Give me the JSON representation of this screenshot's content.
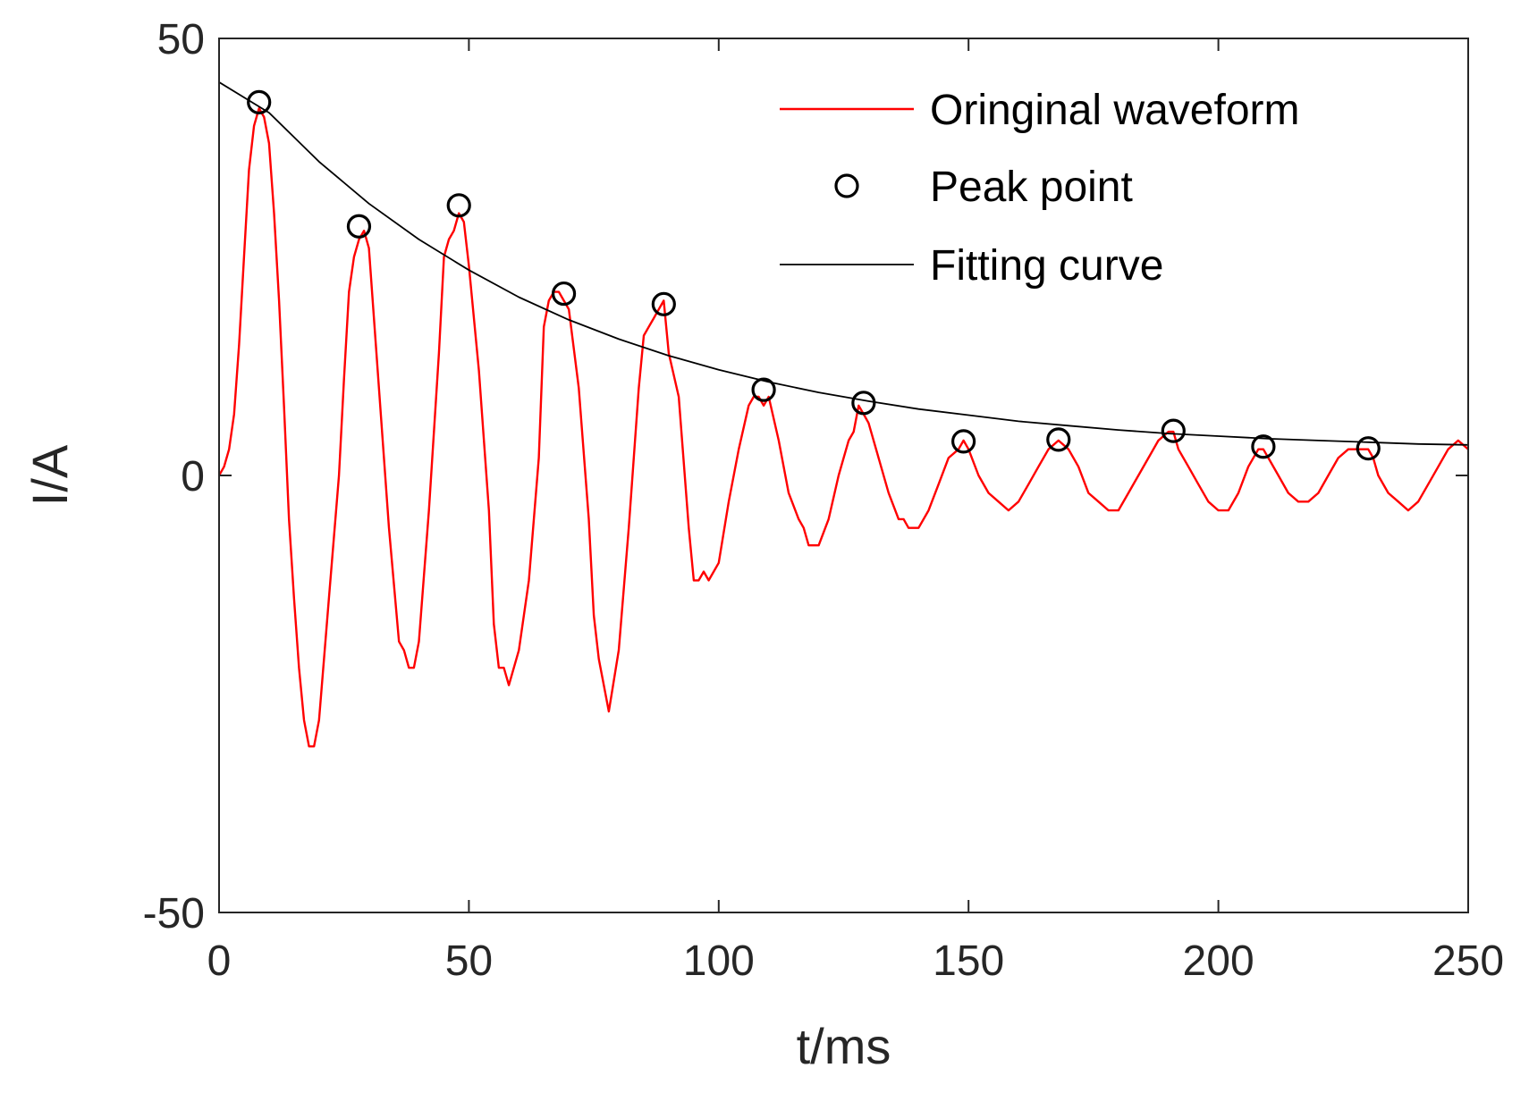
{
  "chart_data": {
    "type": "line",
    "title": "",
    "xlabel": "t/ms",
    "ylabel": "I/A",
    "xlim": [
      0,
      250
    ],
    "ylim": [
      -50,
      50
    ],
    "xticks": [
      0,
      50,
      100,
      150,
      200,
      250
    ],
    "yticks": [
      -50,
      0,
      50
    ],
    "xtick_labels": [
      "0",
      "50",
      "100",
      "150",
      "200",
      "250"
    ],
    "ytick_labels": [
      "-50",
      "0",
      "50"
    ],
    "grid": false,
    "legend_position": "top-right",
    "series": [
      {
        "name": "Oringinal waveform",
        "kind": "line",
        "color": "#ff0000",
        "x": [
          0,
          1,
          2,
          3,
          4,
          5,
          6,
          7,
          8,
          9,
          10,
          11,
          12,
          13,
          14,
          15,
          16,
          17,
          18,
          19,
          20,
          22,
          24,
          25,
          26,
          27,
          28,
          29,
          30,
          32,
          34,
          36,
          37,
          38,
          39,
          40,
          42,
          44,
          45,
          46,
          47,
          48,
          49,
          50,
          52,
          54,
          55,
          56,
          57,
          58,
          60,
          62,
          64,
          65,
          66,
          67,
          68,
          69,
          70,
          72,
          74,
          75,
          76,
          77,
          78,
          80,
          82,
          84,
          85,
          86,
          87,
          88,
          89,
          90,
          92,
          94,
          95,
          96,
          97,
          98,
          100,
          102,
          104,
          106,
          107,
          108,
          109,
          110,
          112,
          114,
          116,
          117,
          118,
          119,
          120,
          122,
          124,
          126,
          127,
          128,
          129,
          130,
          132,
          134,
          136,
          137,
          138,
          139,
          140,
          142,
          144,
          146,
          148,
          149,
          150,
          152,
          154,
          156,
          158,
          160,
          162,
          164,
          166,
          168,
          170,
          172,
          174,
          176,
          178,
          180,
          182,
          184,
          186,
          188,
          190,
          191,
          192,
          194,
          196,
          198,
          200,
          202,
          204,
          206,
          208,
          209,
          210,
          212,
          214,
          216,
          218,
          220,
          222,
          224,
          226,
          228,
          230,
          231,
          232,
          234,
          236,
          238,
          240,
          242,
          244,
          246,
          248,
          250
        ],
        "y": [
          0,
          1,
          3,
          7,
          15,
          25,
          35,
          40,
          42,
          41,
          38,
          30,
          20,
          8,
          -5,
          -14,
          -22,
          -28,
          -31,
          -31,
          -28,
          -14,
          0,
          11,
          21,
          25,
          27,
          28,
          26,
          10,
          -6,
          -19,
          -20,
          -22,
          -22,
          -19,
          -4,
          14,
          25,
          27,
          28,
          30,
          29,
          24,
          12,
          -4,
          -17,
          -22,
          -22,
          -24,
          -20,
          -12,
          2,
          17,
          20,
          21,
          21,
          20,
          19,
          10,
          -5,
          -16,
          -21,
          -24,
          -27,
          -20,
          -6,
          10,
          16,
          17,
          18,
          19,
          20,
          14,
          9,
          -6,
          -12,
          -12,
          -11,
          -12,
          -10,
          -3,
          3,
          8,
          9,
          9,
          8,
          9,
          4,
          -2,
          -5,
          -6,
          -8,
          -8,
          -8,
          -5,
          0,
          4,
          5,
          8,
          7,
          6,
          2,
          -2,
          -5,
          -5,
          -6,
          -6,
          -6,
          -4,
          -1,
          2,
          3,
          4,
          3,
          0,
          -2,
          -3,
          -4,
          -3,
          -1,
          1,
          3,
          4,
          3,
          1,
          -2,
          -3,
          -4,
          -4,
          -2,
          0,
          2,
          4,
          5,
          5,
          3,
          1,
          -1,
          -3,
          -4,
          -4,
          -2,
          1,
          3,
          3,
          2,
          0,
          -2,
          -3,
          -3,
          -2,
          0,
          2,
          3,
          3,
          3,
          2,
          0,
          -2,
          -3,
          -4,
          -3,
          -1,
          1,
          3,
          4,
          3
        ]
      },
      {
        "name": "Peak point",
        "kind": "scatter",
        "marker": "circle",
        "color": "#000000",
        "x": [
          8,
          28,
          48,
          69,
          89,
          109,
          129,
          149,
          168,
          191,
          209,
          230
        ],
        "y": [
          42.7,
          28.5,
          30.9,
          20.8,
          19.6,
          9.8,
          8.3,
          3.9,
          4.1,
          5.1,
          3.3,
          3.1
        ]
      },
      {
        "name": "Fitting curve",
        "kind": "line",
        "color": "#000000",
        "x": [
          0,
          10,
          20,
          30,
          40,
          50,
          60,
          70,
          80,
          90,
          100,
          110,
          120,
          130,
          140,
          150,
          160,
          170,
          180,
          190,
          200,
          210,
          220,
          230,
          240,
          250
        ],
        "y": [
          45.0,
          41.5,
          35.9,
          31.1,
          27.0,
          23.5,
          20.4,
          17.8,
          15.6,
          13.7,
          12.1,
          10.7,
          9.5,
          8.5,
          7.6,
          6.9,
          6.2,
          5.7,
          5.2,
          4.8,
          4.5,
          4.2,
          4.0,
          3.8,
          3.6,
          3.5
        ]
      }
    ]
  }
}
